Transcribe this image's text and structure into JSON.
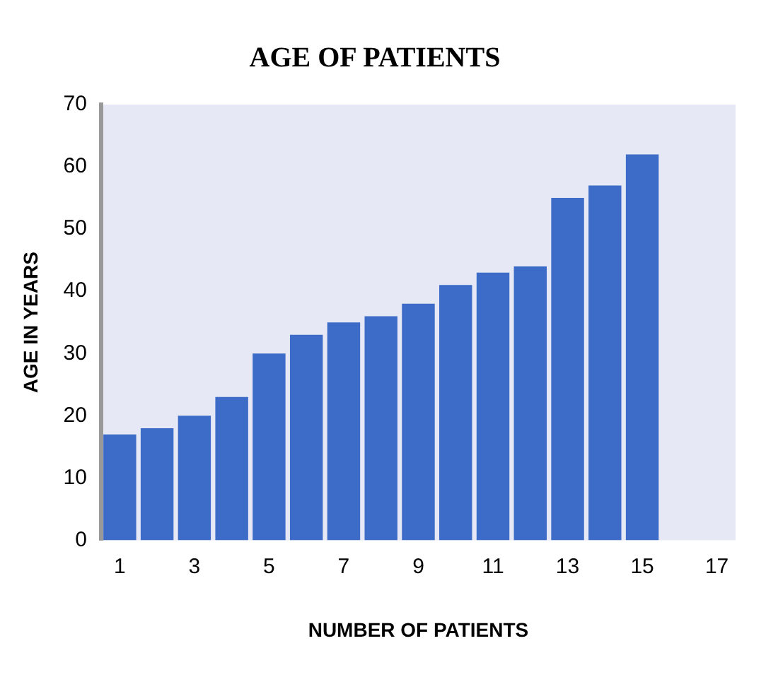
{
  "chart_data": {
    "type": "bar",
    "title": "AGE OF PATIENTS",
    "xlabel": "NUMBER OF PATIENTS",
    "ylabel": "AGE IN YEARS",
    "x": [
      1,
      2,
      3,
      4,
      5,
      6,
      7,
      8,
      9,
      10,
      11,
      12,
      13,
      14,
      15
    ],
    "values": [
      17,
      18,
      20,
      23,
      30,
      33,
      35,
      36,
      38,
      41,
      43,
      44,
      55,
      57,
      62
    ],
    "color": "#3d6cc8",
    "xlim": [
      0.5,
      17.5
    ],
    "xticks": [
      1,
      3,
      5,
      7,
      9,
      11,
      13,
      15,
      17
    ],
    "ylim": [
      0,
      70
    ],
    "yticks": [
      0,
      10,
      20,
      30,
      40,
      50,
      60,
      70
    ],
    "grid": false,
    "legend": false
  }
}
